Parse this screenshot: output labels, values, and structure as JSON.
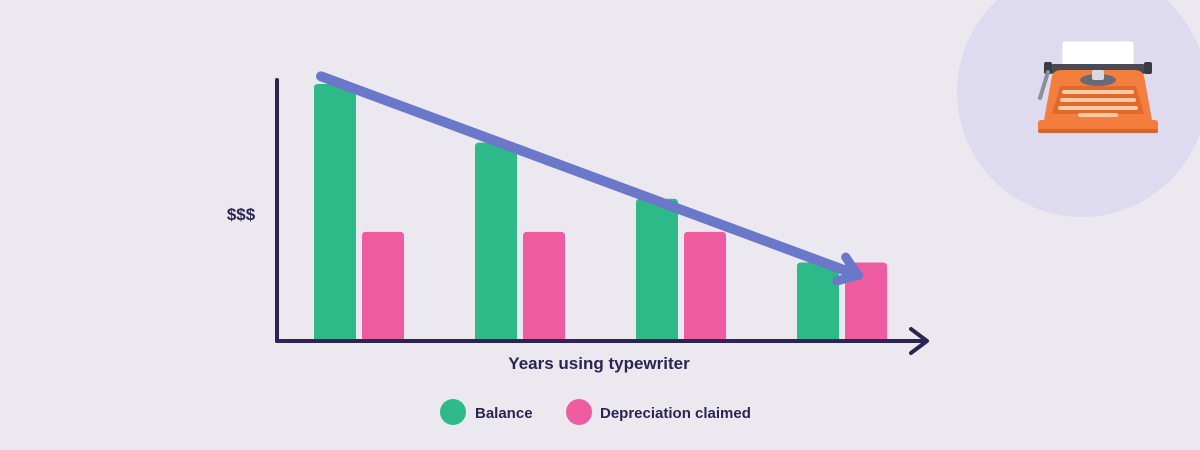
{
  "chart_data": {
    "type": "bar",
    "categories": [
      "",
      "",
      "",
      ""
    ],
    "series": [
      {
        "name": "Balance",
        "values": [
          100,
          77,
          55,
          30
        ]
      },
      {
        "name": "Depreciation claimed",
        "values": [
          42,
          42,
          42,
          30
        ]
      }
    ],
    "ylim": [
      0,
      100
    ],
    "xlabel": "Years using typewriter",
    "ylabel": "$$$",
    "grid": false,
    "legend": "bottom-center",
    "trend_arrow": {
      "from": 103,
      "to": 25
    }
  },
  "colors": {
    "background": "#ebe9ef",
    "axis": "#2b2550",
    "balance": "#2eb989",
    "depreciation": "#ee5ba0",
    "trend_arrow": "#6b78c9",
    "corner_circle": "#dedaf0",
    "typewriter_body": "#f47e3e"
  },
  "icons": {
    "corner": "typewriter-icon"
  }
}
